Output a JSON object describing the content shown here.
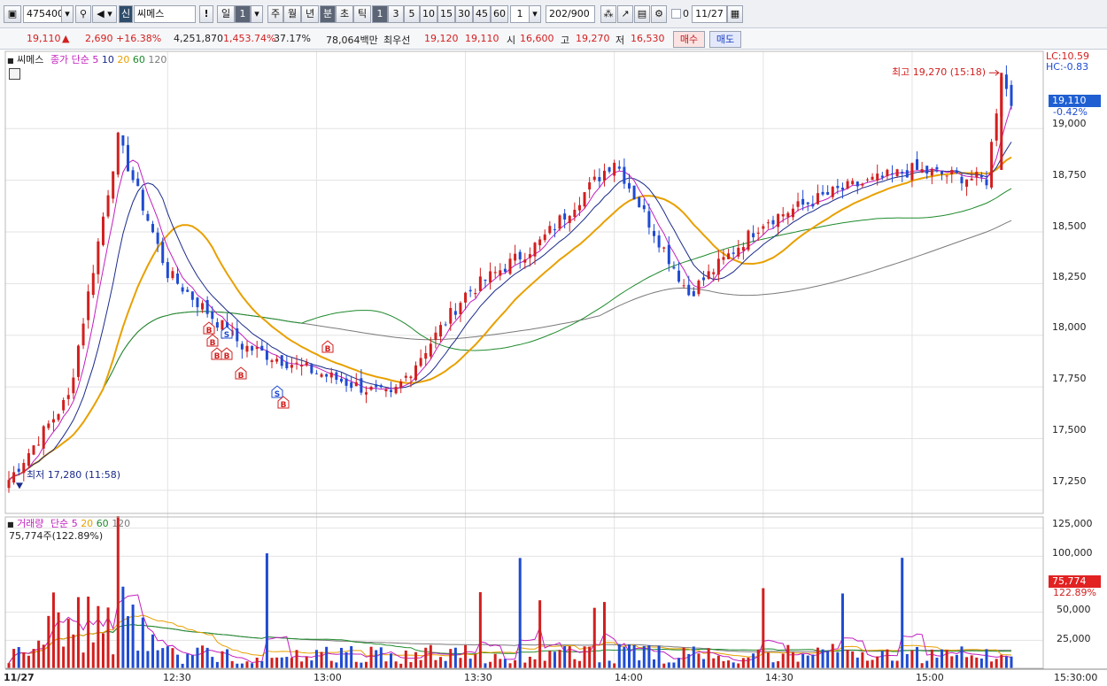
{
  "toolbar": {
    "code": "475400",
    "stock_badge": "신",
    "stock_name": "씨메스",
    "period_day": "일",
    "period_day_count": "1",
    "period_week": "주",
    "period_month": "월",
    "period_year": "년",
    "period_minute": "분",
    "period_second": "초",
    "period_tick": "틱",
    "intervals": [
      "1",
      "3",
      "5",
      "10",
      "15",
      "30",
      "45",
      "60"
    ],
    "interval_input": "1",
    "bars_value": "202",
    "bars_total": "/900",
    "check_label": "0",
    "date_value": "11/27"
  },
  "info": {
    "price": "19,110",
    "arrow": "▲",
    "change": "2,690",
    "change_pct": "+16.38%",
    "volume": "4,251,870",
    "volume_pct": "1,453.74%",
    "turnover": "37.17%",
    "amount": "78,064백만",
    "best_label": "최우선",
    "best_ask": "19,120",
    "best_bid": "19,110",
    "open_label": "시",
    "open_value": "16,600",
    "high_label": "고",
    "high_value": "19,270",
    "low_label": "저",
    "low_value": "16,530",
    "buy_button": "매수",
    "sell_button": "매도"
  },
  "price_panel": {
    "name": "씨메스",
    "legend_prefix": "종가 단순",
    "ma_periods": [
      "5",
      "10",
      "20",
      "60",
      "120"
    ],
    "lc_label": "LC:10.59",
    "hc_label": "HC:-0.83",
    "high_annotation": "최고 19,270 (15:18)",
    "low_annotation": "최저 17,280 (11:58)",
    "current_price_tag": "19,110",
    "current_pct": "-0.42%",
    "y_ticks": [
      "19,000",
      "18,750",
      "18,500",
      "18,250",
      "18,000",
      "17,750",
      "17,500",
      "17,250"
    ]
  },
  "volume_panel": {
    "name": "거래량",
    "legend_prefix": "단순",
    "ma_periods": [
      "5",
      "20",
      "60",
      "120"
    ],
    "current_volume": "75,774주(122.89%)",
    "volume_tag": "75,774",
    "volume_pct_tag": "122.89%",
    "y_ticks": [
      "125,000",
      "100,000",
      "50,000",
      "25,000"
    ]
  },
  "x_axis": {
    "date": "11/27",
    "times": [
      "12:30",
      "13:00",
      "13:30",
      "14:00",
      "14:30",
      "15:00"
    ],
    "end_time": "15:30:00"
  },
  "signals": [
    "B",
    "B",
    "S",
    "B",
    "B",
    "B",
    "S",
    "B",
    "B"
  ],
  "colors": {
    "up": "#d21f1f",
    "down": "#1f4bd2",
    "ma5": "#c21fbf",
    "ma10": "#1a2a8a",
    "ma20": "#e8a000",
    "ma60": "#1e8a2c",
    "ma120": "#7a7a7a"
  },
  "chart_data": {
    "type": "candlestick",
    "title": "씨메스",
    "x_range": [
      "11:58",
      "15:20"
    ],
    "price_range": [
      17200,
      19300
    ],
    "volume_range": [
      0,
      125000
    ],
    "notable": {
      "high": {
        "price": 19270,
        "time": "15:18"
      },
      "low": {
        "price": 17280,
        "time": "11:58"
      },
      "current": 19110
    },
    "anchors": [
      {
        "time": "11:58",
        "close": 17300
      },
      {
        "time": "12:10",
        "close": 17700
      },
      {
        "time": "12:20",
        "close": 18950
      },
      {
        "time": "12:30",
        "close": 18300
      },
      {
        "time": "12:45",
        "close": 17950
      },
      {
        "time": "13:00",
        "close": 17820
      },
      {
        "time": "13:15",
        "close": 17700
      },
      {
        "time": "13:30",
        "close": 18200
      },
      {
        "time": "13:45",
        "close": 18450
      },
      {
        "time": "14:00",
        "close": 18850
      },
      {
        "time": "14:15",
        "close": 18200
      },
      {
        "time": "14:30",
        "close": 18550
      },
      {
        "time": "14:45",
        "close": 18700
      },
      {
        "time": "15:00",
        "close": 18800
      },
      {
        "time": "15:15",
        "close": 18750
      },
      {
        "time": "15:18",
        "close": 19270
      },
      {
        "time": "15:20",
        "close": 19110
      }
    ]
  }
}
